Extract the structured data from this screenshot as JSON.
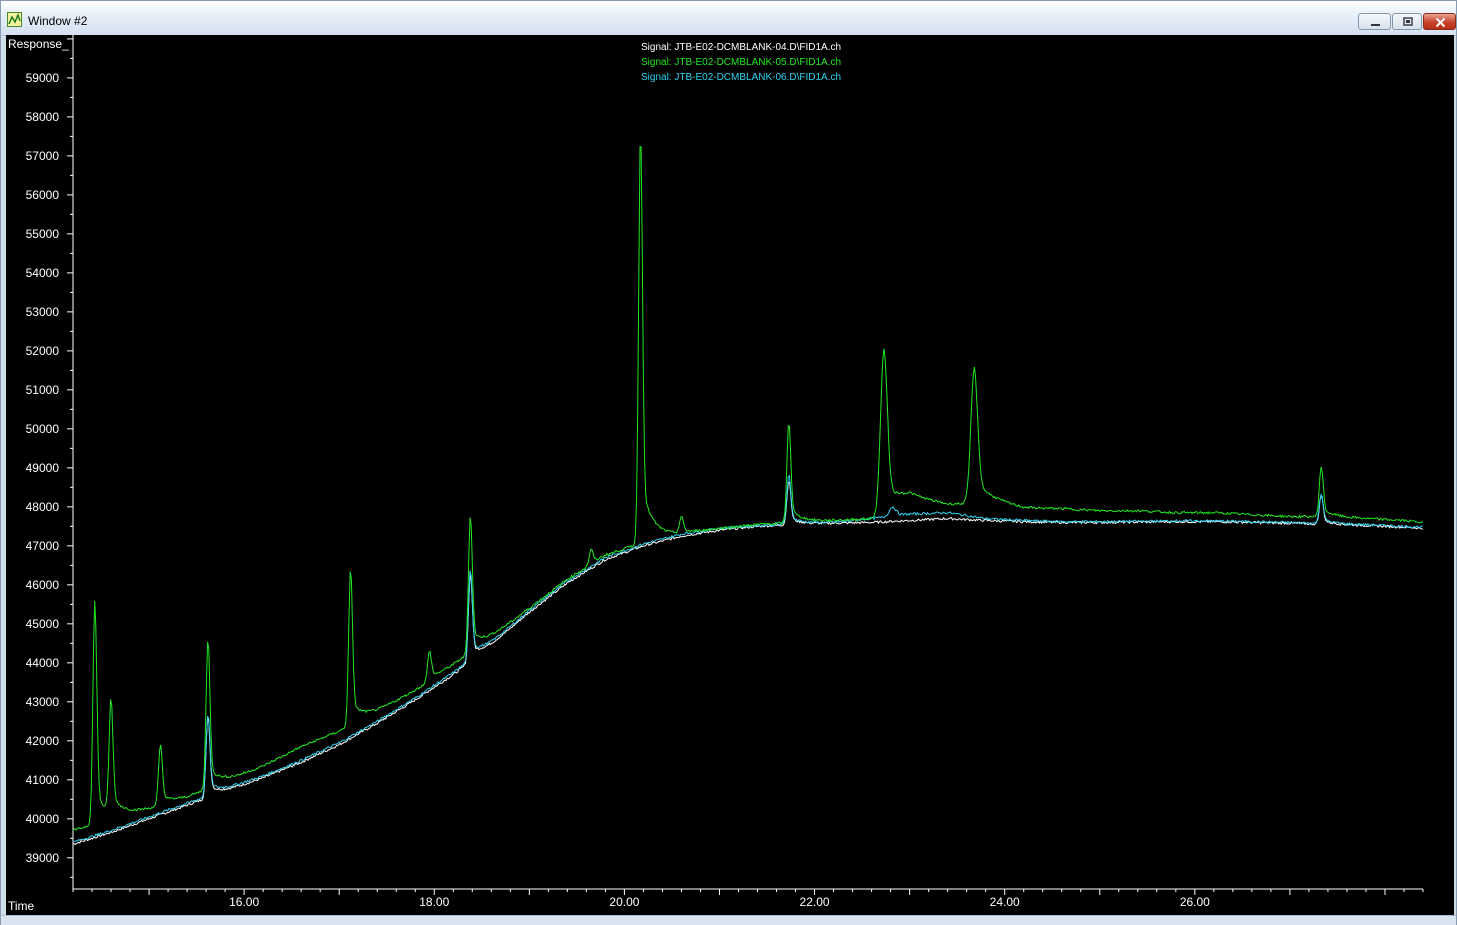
{
  "window": {
    "title": "Window #2",
    "icon": "chart-window-icon",
    "controls": [
      "minimize-icon",
      "maximize-icon",
      "close-icon"
    ]
  },
  "chart_data": {
    "type": "line",
    "ylabel": "Response_",
    "xlabel": "Time",
    "xlim": [
      14.2,
      28.4
    ],
    "ylim": [
      38200,
      60100
    ],
    "x_ticks": [
      16.0,
      18.0,
      20.0,
      22.0,
      24.0,
      26.0
    ],
    "x_tick_labels": [
      "16.00",
      "18.00",
      "20.00",
      "22.00",
      "24.00",
      "26.00"
    ],
    "y_ticks": [
      39000,
      40000,
      41000,
      42000,
      43000,
      44000,
      45000,
      46000,
      47000,
      48000,
      49000,
      50000,
      51000,
      52000,
      53000,
      54000,
      55000,
      56000,
      57000,
      58000,
      59000
    ],
    "grid": false,
    "legend_position": "top-center",
    "background": "#000000",
    "series": [
      {
        "name": "Signal: JTB-E02-DCMBLANK-04.D\\FID1A.ch",
        "color": "#ffffff",
        "x": [
          14.2,
          14.6,
          15.0,
          15.4,
          15.8,
          16.2,
          16.6,
          17.0,
          17.4,
          17.8,
          18.2,
          18.6,
          19.0,
          19.4,
          19.8,
          20.2,
          20.6,
          21.0,
          21.4,
          21.8,
          22.2,
          22.6,
          23.0,
          23.4,
          23.8,
          24.2,
          24.6,
          25.0,
          25.4,
          25.8,
          26.2,
          26.6,
          27.0,
          27.4,
          27.8,
          28.2,
          28.4
        ],
        "y": [
          39350,
          39650,
          40000,
          40350,
          40700,
          41050,
          41450,
          41900,
          42450,
          43050,
          43700,
          44450,
          45300,
          46050,
          46650,
          47000,
          47250,
          47400,
          47500,
          47550,
          47580,
          47600,
          47650,
          47700,
          47650,
          47620,
          47600,
          47600,
          47610,
          47620,
          47620,
          47600,
          47580,
          47550,
          47520,
          47480,
          47450
        ],
        "peaks": [
          {
            "x": 15.62,
            "y": 42650
          },
          {
            "x": 18.38,
            "y": 46300
          },
          {
            "x": 21.73,
            "y": 48700
          },
          {
            "x": 27.33,
            "y": 48300
          }
        ]
      },
      {
        "name": "Signal: JTB-E02-DCMBLANK-05.D\\FID1A.ch",
        "color": "#22e822",
        "x": [
          14.2,
          14.6,
          15.0,
          15.4,
          15.8,
          16.2,
          16.6,
          17.0,
          17.4,
          17.8,
          18.2,
          18.6,
          19.0,
          19.4,
          19.8,
          20.2,
          20.6,
          21.0,
          21.4,
          21.8,
          22.2,
          22.6,
          23.0,
          23.4,
          23.8,
          24.2,
          24.6,
          25.0,
          25.4,
          25.8,
          26.2,
          26.6,
          27.0,
          27.4,
          27.8,
          28.2,
          28.4
        ],
        "y": [
          39700,
          40000,
          40250,
          40550,
          40950,
          41350,
          41850,
          42250,
          42750,
          43300,
          43950,
          44650,
          45400,
          46150,
          46750,
          47100,
          47300,
          47450,
          47550,
          47600,
          47650,
          47700,
          48200,
          48050,
          48100,
          47950,
          47950,
          47900,
          47900,
          47850,
          47850,
          47800,
          47750,
          47750,
          47700,
          47650,
          47600
        ],
        "peaks": [
          {
            "x": 14.43,
            "y": 45600
          },
          {
            "x": 14.6,
            "y": 42900
          },
          {
            "x": 15.12,
            "y": 41900
          },
          {
            "x": 15.62,
            "y": 44600
          },
          {
            "x": 17.12,
            "y": 46400
          },
          {
            "x": 17.95,
            "y": 44300
          },
          {
            "x": 18.38,
            "y": 47800
          },
          {
            "x": 19.65,
            "y": 46900
          },
          {
            "x": 20.17,
            "y": 57700
          },
          {
            "x": 20.6,
            "y": 47700
          },
          {
            "x": 21.73,
            "y": 50200
          },
          {
            "x": 22.73,
            "y": 52050
          },
          {
            "x": 23.68,
            "y": 51550
          },
          {
            "x": 27.33,
            "y": 49050
          }
        ]
      },
      {
        "name": "Signal: JTB-E02-DCMBLANK-06.D\\FID1A.ch",
        "color": "#2fd3f0",
        "x": [
          14.2,
          14.6,
          15.0,
          15.4,
          15.8,
          16.2,
          16.6,
          17.0,
          17.4,
          17.8,
          18.2,
          18.6,
          19.0,
          19.4,
          19.8,
          20.2,
          20.6,
          21.0,
          21.4,
          21.8,
          22.2,
          22.6,
          23.0,
          23.4,
          23.8,
          24.2,
          24.6,
          25.0,
          25.4,
          25.8,
          26.2,
          26.6,
          27.0,
          27.4,
          27.8,
          28.2,
          28.4
        ],
        "y": [
          39400,
          39700,
          40050,
          40400,
          40750,
          41100,
          41500,
          41950,
          42500,
          43100,
          43750,
          44500,
          45350,
          46100,
          46700,
          47050,
          47300,
          47450,
          47520,
          47570,
          47600,
          47700,
          47800,
          47850,
          47700,
          47650,
          47620,
          47620,
          47630,
          47640,
          47640,
          47620,
          47600,
          47570,
          47540,
          47500,
          47480
        ],
        "peaks": [
          {
            "x": 15.62,
            "y": 42700
          },
          {
            "x": 18.38,
            "y": 46400
          },
          {
            "x": 21.73,
            "y": 48850
          },
          {
            "x": 22.82,
            "y": 48000
          },
          {
            "x": 27.33,
            "y": 48350
          }
        ]
      }
    ]
  }
}
